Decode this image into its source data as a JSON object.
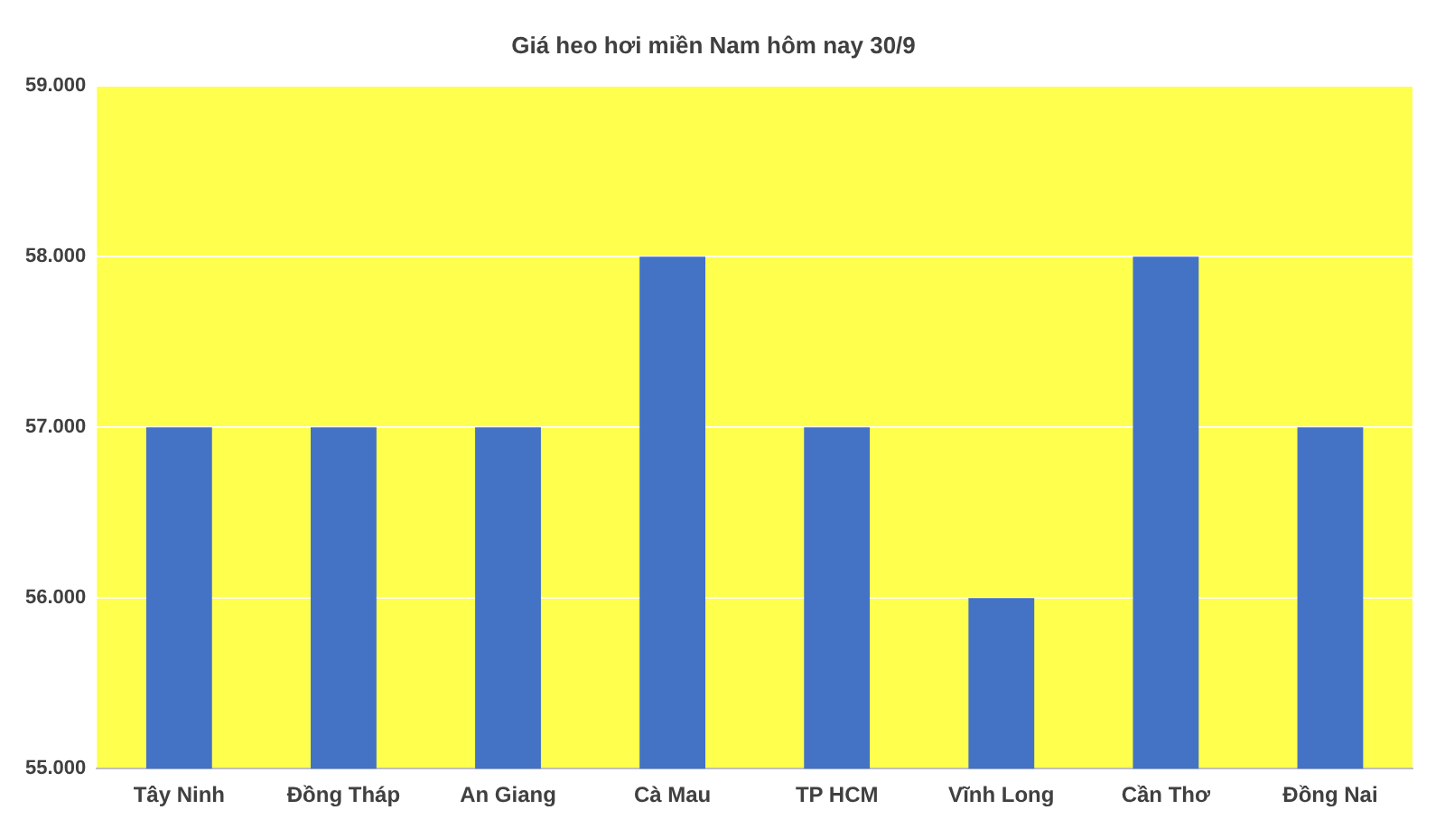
{
  "chart_data": {
    "type": "bar",
    "title": "Giá heo hơi miền Nam hôm nay 30/9",
    "categories": [
      "Tây Ninh",
      "Đồng Tháp",
      "An Giang",
      "Cà Mau",
      "TP HCM",
      "Vĩnh Long",
      "Cần Thơ",
      "Đồng Nai"
    ],
    "values": [
      57000,
      57000,
      57000,
      58000,
      57000,
      56000,
      58000,
      57000
    ],
    "color": "#4472c4",
    "ylim": [
      55000,
      59000
    ],
    "yticks": [
      {
        "value": 55000,
        "label": "55.000"
      },
      {
        "value": 56000,
        "label": "56.000"
      },
      {
        "value": 57000,
        "label": "57.000"
      },
      {
        "value": 58000,
        "label": "58.000"
      },
      {
        "value": 59000,
        "label": "59.000"
      }
    ],
    "grid": "y"
  }
}
